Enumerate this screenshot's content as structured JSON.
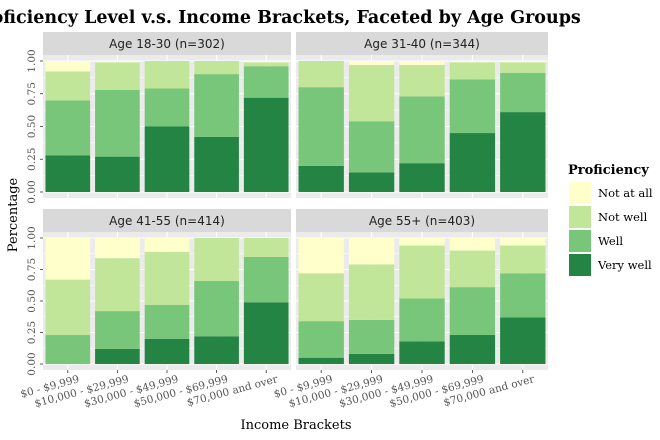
{
  "chart_data": {
    "type": "bar",
    "stacked": true,
    "title": "Proficiency Level v.s. Income Brackets, Faceted by Age Groups",
    "xlabel": "Income Brackets",
    "ylabel": "Percentage",
    "ylim": [
      0,
      1
    ],
    "yticks": [
      "0.00",
      "0.25",
      "0.50",
      "0.75",
      "1.00"
    ],
    "categories": [
      "$0 - $9,999",
      "$10,000 - $29,999",
      "$30,000 - $49,999",
      "$50,000 - $69,999",
      "$70,000 and over"
    ],
    "legend": {
      "title": "Proficiency",
      "position": "right",
      "entries": [
        {
          "name": "Not at all",
          "color": "#FFFFCC"
        },
        {
          "name": "Not well",
          "color": "#C2E699"
        },
        {
          "name": "Well",
          "color": "#78C679"
        },
        {
          "name": "Very well",
          "color": "#238443"
        }
      ]
    },
    "panel_background": "#EBEBEB",
    "strip_background": "#D9D9D9",
    "grid": true,
    "facets": [
      {
        "label": "Age 18-30 (n=302)",
        "series": [
          {
            "name": "Very well",
            "values": [
              0.28,
              0.27,
              0.5,
              0.42,
              0.72
            ]
          },
          {
            "name": "Well",
            "values": [
              0.42,
              0.51,
              0.29,
              0.48,
              0.24
            ]
          },
          {
            "name": "Not well",
            "values": [
              0.22,
              0.21,
              0.21,
              0.1,
              0.03
            ]
          },
          {
            "name": "Not at all",
            "values": [
              0.08,
              0.01,
              0.0,
              0.0,
              0.01
            ]
          }
        ]
      },
      {
        "label": "Age 31-40 (n=344)",
        "series": [
          {
            "name": "Very well",
            "values": [
              0.2,
              0.15,
              0.22,
              0.45,
              0.61
            ]
          },
          {
            "name": "Well",
            "values": [
              0.6,
              0.39,
              0.51,
              0.41,
              0.3
            ]
          },
          {
            "name": "Not well",
            "values": [
              0.2,
              0.43,
              0.24,
              0.13,
              0.08
            ]
          },
          {
            "name": "Not at all",
            "values": [
              0.0,
              0.03,
              0.03,
              0.01,
              0.01
            ]
          }
        ]
      },
      {
        "label": "Age 41-55 (n=414)",
        "series": [
          {
            "name": "Very well",
            "values": [
              0.0,
              0.12,
              0.2,
              0.22,
              0.49
            ]
          },
          {
            "name": "Well",
            "values": [
              0.23,
              0.3,
              0.27,
              0.44,
              0.36
            ]
          },
          {
            "name": "Not well",
            "values": [
              0.44,
              0.42,
              0.42,
              0.34,
              0.15
            ]
          },
          {
            "name": "Not at all",
            "values": [
              0.33,
              0.16,
              0.11,
              0.0,
              0.0
            ]
          }
        ]
      },
      {
        "label": "Age 55+ (n=403)",
        "series": [
          {
            "name": "Very well",
            "values": [
              0.05,
              0.08,
              0.18,
              0.23,
              0.37
            ]
          },
          {
            "name": "Well",
            "values": [
              0.29,
              0.27,
              0.34,
              0.38,
              0.35
            ]
          },
          {
            "name": "Not well",
            "values": [
              0.38,
              0.44,
              0.42,
              0.29,
              0.22
            ]
          },
          {
            "name": "Not at all",
            "values": [
              0.28,
              0.21,
              0.06,
              0.1,
              0.06
            ]
          }
        ]
      }
    ]
  }
}
